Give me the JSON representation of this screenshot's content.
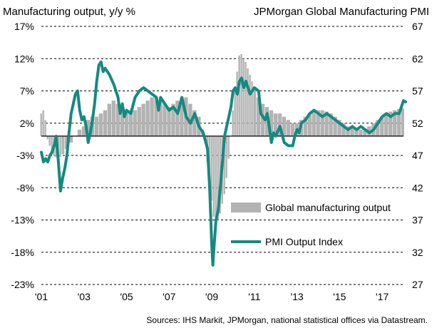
{
  "chart_data": {
    "type": "bar+line",
    "left_axis_label": "Manufacturing output, y/y  %",
    "right_axis_label": "JPMorgan Global Manufacturing PMI",
    "source_note": "Sources: IHS Markit, JPMorgan, national statistical offices via Datastream.",
    "left_axis": {
      "min": -23,
      "max": 17,
      "ticks": [
        "17%",
        "12%",
        "7%",
        "2%",
        "-3%",
        "-8%",
        "-13%",
        "-18%",
        "-23%"
      ]
    },
    "right_axis": {
      "min": 27,
      "max": 67,
      "ticks": [
        "67",
        "62",
        "57",
        "52",
        "47",
        "42",
        "37",
        "32",
        "27"
      ]
    },
    "x_axis": {
      "start": 2001.0,
      "end": 2018.0,
      "ticks": [
        "'01",
        "'03",
        "'05",
        "'07",
        "'09",
        "'11",
        "'13",
        "'15",
        "'17"
      ]
    },
    "legend": {
      "position": "lower-right",
      "bar_label": "Global manufacturing output",
      "line_label": "PMI Output Index"
    },
    "colors": {
      "bars": "#b3b3b3",
      "line": "#148a80",
      "zero_line": "#000000",
      "grid": "#000000"
    },
    "series": [
      {
        "name": "Global manufacturing output",
        "axis": "left",
        "style": "bars",
        "points": [
          [
            2001.0,
            3.5
          ],
          [
            2001.1,
            4.0
          ],
          [
            2001.2,
            2.5
          ],
          [
            2001.3,
            -0.5
          ],
          [
            2001.4,
            -1.5
          ],
          [
            2001.5,
            -2.5
          ],
          [
            2001.6,
            -3.0
          ],
          [
            2001.7,
            -3.3
          ],
          [
            2001.8,
            -3.5
          ],
          [
            2001.9,
            -3.2
          ],
          [
            2002.0,
            -2.8
          ],
          [
            2002.2,
            -2.0
          ],
          [
            2002.4,
            -1.0
          ],
          [
            2002.6,
            0.0
          ],
          [
            2002.8,
            1.0
          ],
          [
            2003.0,
            1.5
          ],
          [
            2003.2,
            2.5
          ],
          [
            2003.4,
            3.0
          ],
          [
            2003.6,
            3.0
          ],
          [
            2003.8,
            3.5
          ],
          [
            2004.0,
            4.0
          ],
          [
            2004.2,
            5.0
          ],
          [
            2004.4,
            5.5
          ],
          [
            2004.6,
            5.0
          ],
          [
            2004.8,
            4.5
          ],
          [
            2005.0,
            4.0
          ],
          [
            2005.2,
            3.8
          ],
          [
            2005.4,
            4.0
          ],
          [
            2005.6,
            4.5
          ],
          [
            2005.8,
            5.0
          ],
          [
            2006.0,
            5.5
          ],
          [
            2006.2,
            6.0
          ],
          [
            2006.4,
            6.0
          ],
          [
            2006.6,
            5.5
          ],
          [
            2006.8,
            5.0
          ],
          [
            2007.0,
            4.5
          ],
          [
            2007.2,
            5.0
          ],
          [
            2007.4,
            5.5
          ],
          [
            2007.6,
            6.0
          ],
          [
            2007.8,
            6.0
          ],
          [
            2008.0,
            5.0
          ],
          [
            2008.2,
            4.0
          ],
          [
            2008.4,
            3.0
          ],
          [
            2008.6,
            1.0
          ],
          [
            2008.7,
            -1.0
          ],
          [
            2008.8,
            -4.0
          ],
          [
            2008.9,
            -7.0
          ],
          [
            2009.0,
            -10.0
          ],
          [
            2009.1,
            -12.5
          ],
          [
            2009.2,
            -13.5
          ],
          [
            2009.3,
            -13.0
          ],
          [
            2009.4,
            -12.0
          ],
          [
            2009.5,
            -10.5
          ],
          [
            2009.6,
            -9.0
          ],
          [
            2009.7,
            -6.5
          ],
          [
            2009.8,
            -3.5
          ],
          [
            2009.9,
            0.0
          ],
          [
            2010.0,
            4.0
          ],
          [
            2010.1,
            7.5
          ],
          [
            2010.2,
            10.0
          ],
          [
            2010.3,
            12.5
          ],
          [
            2010.4,
            12.7
          ],
          [
            2010.5,
            12.0
          ],
          [
            2010.6,
            11.5
          ],
          [
            2010.7,
            10.5
          ],
          [
            2010.8,
            9.5
          ],
          [
            2010.9,
            8.5
          ],
          [
            2011.0,
            7.5
          ],
          [
            2011.2,
            6.0
          ],
          [
            2011.4,
            5.0
          ],
          [
            2011.6,
            4.5
          ],
          [
            2011.8,
            4.0
          ],
          [
            2012.0,
            3.5
          ],
          [
            2012.2,
            3.5
          ],
          [
            2012.4,
            3.0
          ],
          [
            2012.6,
            2.5
          ],
          [
            2012.8,
            2.0
          ],
          [
            2013.0,
            2.0
          ],
          [
            2013.2,
            2.5
          ],
          [
            2013.4,
            3.0
          ],
          [
            2013.6,
            3.5
          ],
          [
            2013.8,
            3.8
          ],
          [
            2014.0,
            4.0
          ],
          [
            2014.2,
            4.0
          ],
          [
            2014.4,
            3.8
          ],
          [
            2014.6,
            3.5
          ],
          [
            2014.8,
            3.0
          ],
          [
            2015.0,
            2.5
          ],
          [
            2015.2,
            2.0
          ],
          [
            2015.4,
            1.5
          ],
          [
            2015.6,
            1.2
          ],
          [
            2015.8,
            1.0
          ],
          [
            2016.0,
            1.0
          ],
          [
            2016.2,
            1.2
          ],
          [
            2016.4,
            1.5
          ],
          [
            2016.6,
            2.0
          ],
          [
            2016.8,
            2.5
          ],
          [
            2017.0,
            3.0
          ],
          [
            2017.2,
            3.5
          ],
          [
            2017.4,
            3.8
          ],
          [
            2017.6,
            4.0
          ],
          [
            2017.8,
            4.2
          ],
          [
            2018.0,
            4.3
          ]
        ]
      },
      {
        "name": "PMI Output Index",
        "axis": "right",
        "style": "line",
        "points": [
          [
            2001.0,
            47.5
          ],
          [
            2001.1,
            46.0
          ],
          [
            2001.2,
            46.5
          ],
          [
            2001.3,
            46.0
          ],
          [
            2001.4,
            47.0
          ],
          [
            2001.5,
            47.5
          ],
          [
            2001.6,
            48.5
          ],
          [
            2001.7,
            50.0
          ],
          [
            2001.8,
            46.0
          ],
          [
            2001.9,
            41.5
          ],
          [
            2002.0,
            43.5
          ],
          [
            2002.1,
            45.0
          ],
          [
            2002.2,
            47.0
          ],
          [
            2002.3,
            50.5
          ],
          [
            2002.4,
            53.5
          ],
          [
            2002.5,
            55.0
          ],
          [
            2002.6,
            56.5
          ],
          [
            2002.7,
            57.0
          ],
          [
            2002.8,
            54.0
          ],
          [
            2002.9,
            52.5
          ],
          [
            2003.0,
            53.0
          ],
          [
            2003.1,
            51.5
          ],
          [
            2003.2,
            49.0
          ],
          [
            2003.3,
            50.5
          ],
          [
            2003.4,
            52.5
          ],
          [
            2003.5,
            55.0
          ],
          [
            2003.6,
            58.5
          ],
          [
            2003.7,
            61.0
          ],
          [
            2003.8,
            61.5
          ],
          [
            2003.9,
            60.0
          ],
          [
            2004.0,
            60.5
          ],
          [
            2004.2,
            59.5
          ],
          [
            2004.4,
            58.0
          ],
          [
            2004.6,
            56.0
          ],
          [
            2004.7,
            53.5
          ],
          [
            2004.8,
            55.0
          ],
          [
            2004.9,
            53.0
          ],
          [
            2005.0,
            54.0
          ],
          [
            2005.2,
            53.5
          ],
          [
            2005.4,
            56.0
          ],
          [
            2005.6,
            57.0
          ],
          [
            2005.8,
            57.5
          ],
          [
            2006.0,
            57.0
          ],
          [
            2006.2,
            56.5
          ],
          [
            2006.4,
            56.0
          ],
          [
            2006.5,
            54.0
          ],
          [
            2006.6,
            56.0
          ],
          [
            2006.8,
            55.0
          ],
          [
            2007.0,
            54.0
          ],
          [
            2007.2,
            54.5
          ],
          [
            2007.4,
            53.5
          ],
          [
            2007.6,
            56.0
          ],
          [
            2007.8,
            53.0
          ],
          [
            2008.0,
            52.0
          ],
          [
            2008.2,
            53.5
          ],
          [
            2008.4,
            51.5
          ],
          [
            2008.6,
            50.5
          ],
          [
            2008.8,
            48.0
          ],
          [
            2008.9,
            42.0
          ],
          [
            2009.0,
            33.0
          ],
          [
            2009.05,
            30.0
          ],
          [
            2009.1,
            32.5
          ],
          [
            2009.2,
            37.0
          ],
          [
            2009.3,
            38.5
          ],
          [
            2009.4,
            42.0
          ],
          [
            2009.5,
            46.0
          ],
          [
            2009.6,
            50.0
          ],
          [
            2009.7,
            51.5
          ],
          [
            2009.8,
            53.0
          ],
          [
            2009.9,
            54.5
          ],
          [
            2010.0,
            57.0
          ],
          [
            2010.1,
            57.5
          ],
          [
            2010.2,
            56.5
          ],
          [
            2010.3,
            58.5
          ],
          [
            2010.4,
            59.0
          ],
          [
            2010.5,
            57.5
          ],
          [
            2010.6,
            58.5
          ],
          [
            2010.8,
            56.5
          ],
          [
            2011.0,
            57.5
          ],
          [
            2011.2,
            57.0
          ],
          [
            2011.3,
            53.5
          ],
          [
            2011.5,
            52.5
          ],
          [
            2011.6,
            53.5
          ],
          [
            2011.7,
            51.5
          ],
          [
            2011.8,
            49.0
          ],
          [
            2011.9,
            50.5
          ],
          [
            2012.0,
            50.0
          ],
          [
            2012.2,
            51.5
          ],
          [
            2012.4,
            49.0
          ],
          [
            2012.6,
            48.5
          ],
          [
            2012.8,
            48.5
          ],
          [
            2012.9,
            50.0
          ],
          [
            2013.0,
            51.0
          ],
          [
            2013.1,
            50.5
          ],
          [
            2013.2,
            52.0
          ],
          [
            2013.4,
            52.5
          ],
          [
            2013.6,
            53.5
          ],
          [
            2013.8,
            54.0
          ],
          [
            2014.0,
            53.5
          ],
          [
            2014.2,
            53.0
          ],
          [
            2014.4,
            53.5
          ],
          [
            2014.6,
            53.0
          ],
          [
            2014.8,
            52.5
          ],
          [
            2015.0,
            52.0
          ],
          [
            2015.2,
            51.5
          ],
          [
            2015.4,
            51.0
          ],
          [
            2015.6,
            51.5
          ],
          [
            2015.8,
            51.0
          ],
          [
            2016.0,
            51.5
          ],
          [
            2016.2,
            51.0
          ],
          [
            2016.4,
            50.5
          ],
          [
            2016.6,
            51.0
          ],
          [
            2016.8,
            52.0
          ],
          [
            2017.0,
            53.0
          ],
          [
            2017.2,
            53.5
          ],
          [
            2017.4,
            53.0
          ],
          [
            2017.6,
            53.5
          ],
          [
            2017.8,
            53.5
          ],
          [
            2017.9,
            54.5
          ],
          [
            2018.0,
            55.5
          ],
          [
            2018.1,
            55.3
          ]
        ]
      }
    ]
  }
}
